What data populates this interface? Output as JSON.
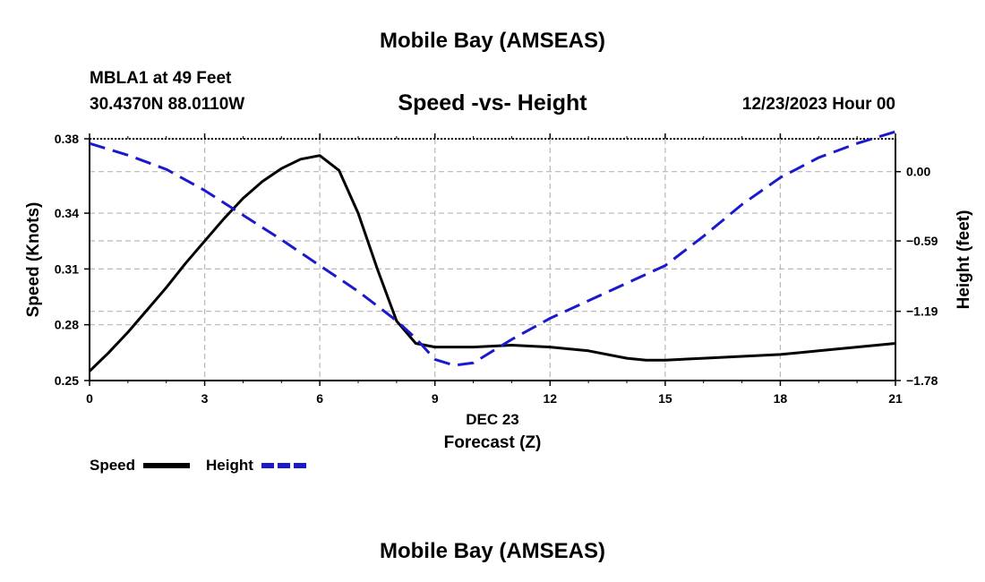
{
  "header": {
    "title_top": "Mobile Bay (AMSEAS)",
    "station": "MBLA1 at 49 Feet",
    "coords": "30.4370N  88.0110W",
    "chart_title": "Speed -vs- Height",
    "datetime": "12/23/2023 Hour 00",
    "title_bottom": "Mobile Bay (AMSEAS)"
  },
  "legend": {
    "speed_label": "Speed",
    "height_label": "Height"
  },
  "colors": {
    "speed": "#000000",
    "height": "#1a1acc",
    "grid": "#b8b8b8"
  },
  "chart_data": {
    "type": "line",
    "title": "Speed -vs- Height",
    "xlabel": "Forecast (Z)",
    "xsublabel": "DEC 23",
    "ylabel_left": "Speed (Knots)",
    "ylabel_right": "Height (feet)",
    "xlim": [
      0,
      21
    ],
    "ylim_left": [
      0.25,
      0.38
    ],
    "ylim_right": [
      -1.78,
      0.28
    ],
    "x_ticks": [
      0,
      3,
      6,
      9,
      12,
      15,
      18,
      21
    ],
    "x_tick_labels": [
      "0",
      "3",
      "6",
      "9",
      "12",
      "15",
      "18",
      "21"
    ],
    "y_left_ticks": [
      0.25,
      0.28,
      0.31,
      0.34,
      0.38
    ],
    "y_left_tick_labels": [
      "0.25",
      "0.28",
      "0.31",
      "0.34",
      "0.38"
    ],
    "y_right_ticks": [
      -1.78,
      -1.19,
      -0.59,
      0.0
    ],
    "y_right_tick_labels": [
      "−1.78",
      "−1.19",
      "−0.59",
      "0.00"
    ],
    "grid": true,
    "series": [
      {
        "name": "Speed",
        "axis": "left",
        "style": "solid",
        "x": [
          0,
          0.5,
          1,
          1.5,
          2,
          2.5,
          3,
          3.5,
          4,
          4.5,
          5,
          5.5,
          6,
          6.5,
          7,
          7.5,
          8,
          8.5,
          9,
          9.5,
          10,
          11,
          12,
          13,
          14,
          14.5,
          15,
          16,
          17,
          18,
          19,
          20,
          21
        ],
        "values": [
          0.255,
          0.265,
          0.276,
          0.288,
          0.3,
          0.313,
          0.325,
          0.337,
          0.348,
          0.357,
          0.364,
          0.369,
          0.371,
          0.363,
          0.34,
          0.31,
          0.282,
          0.27,
          0.268,
          0.268,
          0.268,
          0.269,
          0.268,
          0.266,
          0.262,
          0.261,
          0.261,
          0.262,
          0.263,
          0.264,
          0.266,
          0.268,
          0.27
        ]
      },
      {
        "name": "Height",
        "axis": "right",
        "style": "dashed",
        "x": [
          0,
          1,
          2,
          3,
          4,
          5,
          6,
          7,
          8,
          8.5,
          9,
          9.5,
          10,
          11,
          12,
          13,
          14,
          15,
          16,
          17,
          18,
          19,
          20,
          21
        ],
        "values": [
          0.24,
          0.14,
          0.02,
          -0.16,
          -0.37,
          -0.58,
          -0.8,
          -1.02,
          -1.27,
          -1.42,
          -1.6,
          -1.65,
          -1.63,
          -1.43,
          -1.25,
          -1.1,
          -0.95,
          -0.8,
          -0.55,
          -0.28,
          -0.05,
          0.12,
          0.24,
          0.34
        ]
      }
    ]
  }
}
